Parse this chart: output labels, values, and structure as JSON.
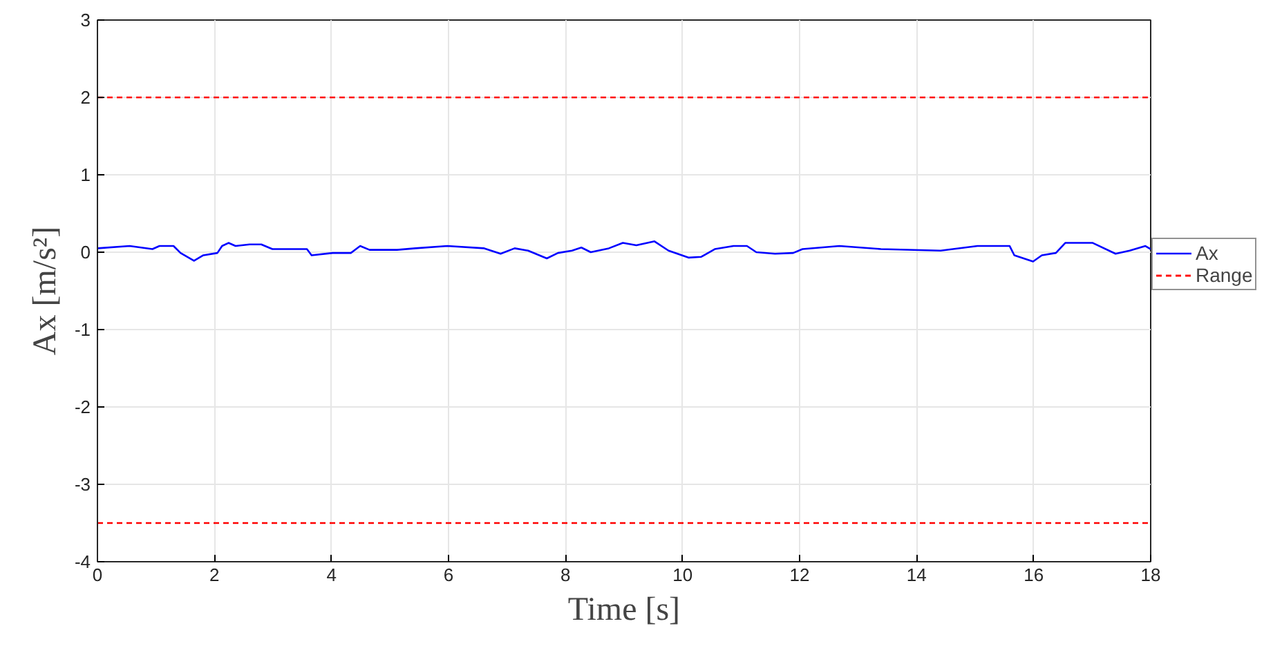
{
  "chart_data": {
    "type": "line",
    "xlabel": "Time [s]",
    "ylabel": "Ax [m/s²]",
    "xlim": [
      0,
      18
    ],
    "ylim": [
      -4,
      3
    ],
    "xticks": [
      0,
      2,
      4,
      6,
      8,
      10,
      12,
      14,
      16,
      18
    ],
    "yticks": [
      -4,
      -3,
      -2,
      -1,
      0,
      1,
      2,
      3
    ],
    "grid": true,
    "legend": "right",
    "line_style": "solid",
    "marker": "none",
    "series": [
      {
        "name": "Ax",
        "color": "#0000ff",
        "x": [
          0,
          0.55,
          0.94,
          1.06,
          1.3,
          1.42,
          1.65,
          1.81,
          2.05,
          2.13,
          2.24,
          2.36,
          2.6,
          2.8,
          2.99,
          3.58,
          3.66,
          4.02,
          4.33,
          4.49,
          4.65,
          5.12,
          5.43,
          5.98,
          6.61,
          6.89,
          7.13,
          7.36,
          7.68,
          7.87,
          8.11,
          8.27,
          8.43,
          8.74,
          8.98,
          9.21,
          9.52,
          9.76,
          10.1,
          10.32,
          10.55,
          10.87,
          11.1,
          11.26,
          11.58,
          11.89,
          12.05,
          12.68,
          13.39,
          14.41,
          15.04,
          15.59,
          15.67,
          15.99,
          16.14,
          16.38,
          16.54,
          17.01,
          17.4,
          17.64,
          17.91,
          18
        ],
        "values": [
          0.05,
          0.08,
          0.04,
          0.08,
          0.08,
          -0.01,
          -0.11,
          -0.04,
          -0.01,
          0.08,
          0.12,
          0.08,
          0.1,
          0.1,
          0.04,
          0.04,
          -0.04,
          -0.01,
          -0.01,
          0.08,
          0.03,
          0.03,
          0.05,
          0.08,
          0.05,
          -0.02,
          0.05,
          0.02,
          -0.08,
          -0.01,
          0.02,
          0.06,
          0,
          0.05,
          0.12,
          0.09,
          0.14,
          0.02,
          -0.07,
          -0.06,
          0.04,
          0.08,
          0.08,
          0,
          -0.02,
          -0.01,
          0.04,
          0.08,
          0.04,
          0.02,
          0.08,
          0.08,
          -0.04,
          -0.12,
          -0.04,
          -0.01,
          0.12,
          0.12,
          -0.02,
          0.02,
          0.08,
          0.04
        ]
      }
    ],
    "ref_lines": [
      {
        "axis": "y",
        "value": 2,
        "label": "Range",
        "color": "#ff0000",
        "line_style": "dashed"
      },
      {
        "axis": "y",
        "value": -3.5,
        "color": "#ff0000",
        "line_style": "dashed"
      }
    ]
  }
}
